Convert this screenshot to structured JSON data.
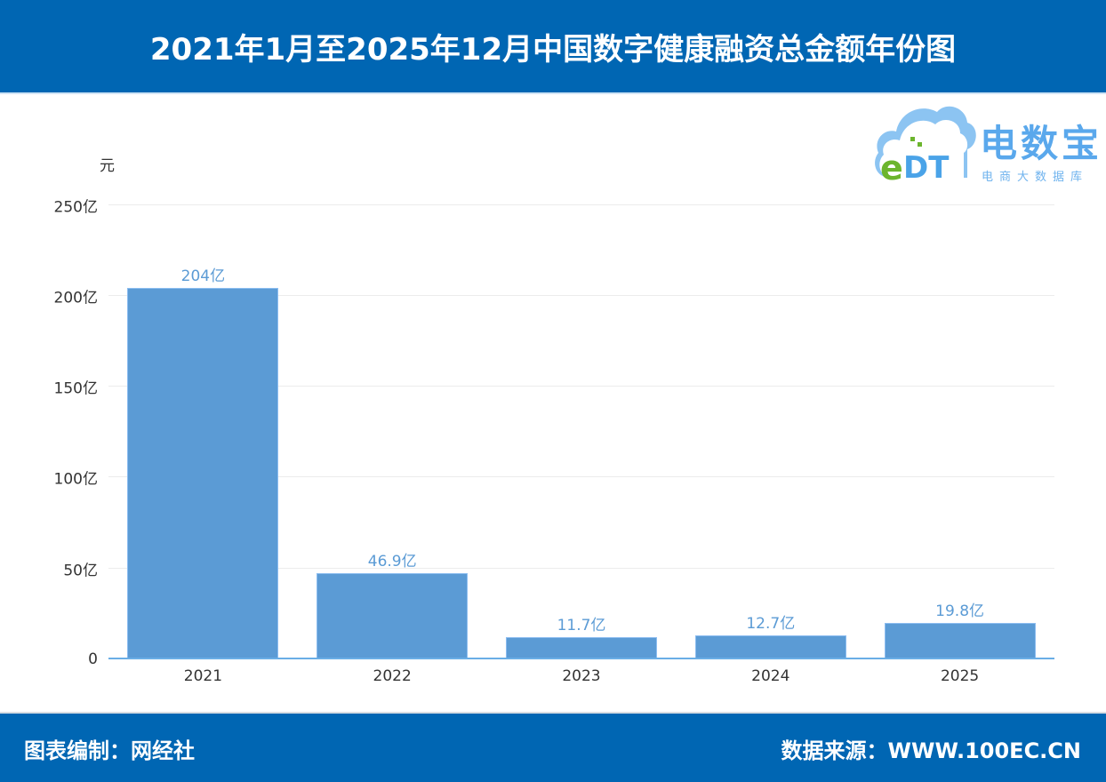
{
  "header": {
    "title": "2021年1月至2025年12月中国数字健康融资总金额年份图"
  },
  "logo": {
    "mark": "eDT",
    "name": "电数宝",
    "subtitle": "电商大数据库"
  },
  "footer": {
    "credit": "图表编制：网经社",
    "source": "数据来源：WWW.100EC.CN"
  },
  "colors": {
    "header_bg": "#0066b3",
    "bar": "#5b9bd5",
    "label": "#5b9bd5",
    "axis": "#6aaee6"
  },
  "chart_data": {
    "type": "bar",
    "title": "2021年1月至2025年12月中国数字健康融资总金额年份图",
    "xlabel": "",
    "ylabel": "元",
    "categories": [
      "2021",
      "2022",
      "2023",
      "2024",
      "2025"
    ],
    "values": [
      204,
      46.9,
      11.7,
      12.7,
      19.8
    ],
    "value_labels": [
      "204亿",
      "46.9亿",
      "11.7亿",
      "12.7亿",
      "19.8亿"
    ],
    "unit": "亿元",
    "ylim": [
      0,
      250
    ],
    "yticks": [
      0,
      50,
      100,
      150,
      200,
      250
    ],
    "ytick_labels": [
      "0",
      "50亿",
      "100亿",
      "150亿",
      "200亿",
      "250亿"
    ],
    "grid": true,
    "legend": "none"
  }
}
